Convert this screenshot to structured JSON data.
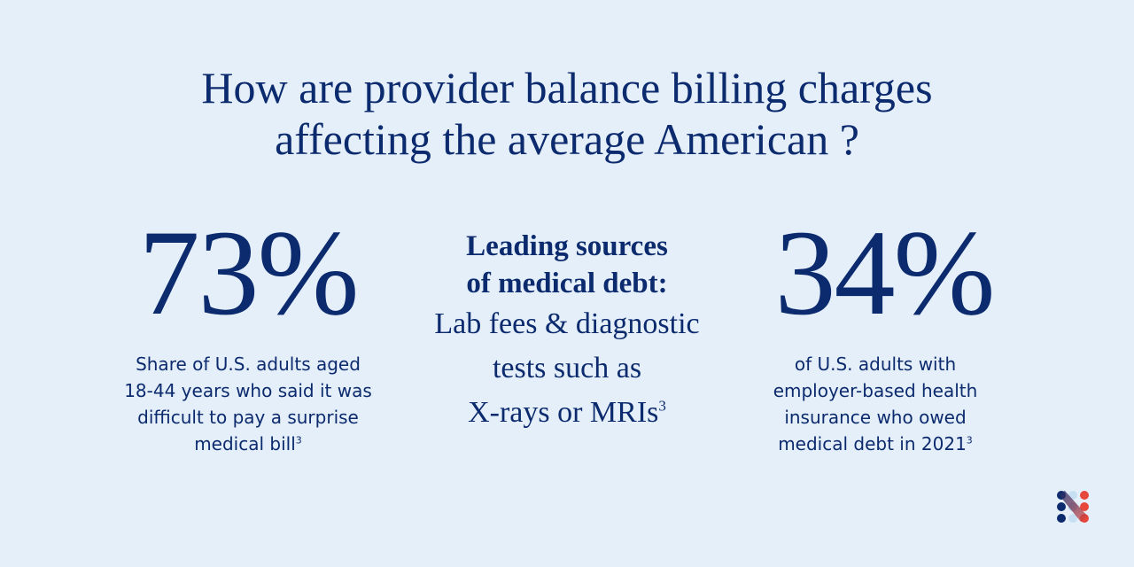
{
  "title": {
    "line1": "How are provider balance billing charges",
    "line2": "affecting the average American ?"
  },
  "left_stat": {
    "value": "73%",
    "caption": [
      "Share of U.S. adults aged",
      "18-44 years who said it was",
      "difficult to pay a surprise",
      "medical bill"
    ],
    "footnote": "3"
  },
  "middle": {
    "heading": [
      "Leading sources",
      "of medical debt:"
    ],
    "body": [
      "Lab fees & diagnostic",
      "tests such as",
      "X-rays or MRIs"
    ],
    "footnote": "3"
  },
  "right_stat": {
    "value": "34%",
    "caption": [
      "of U.S. adults with",
      "employer-based health",
      "insurance who owed",
      "medical debt in 2021"
    ],
    "footnote": "3"
  },
  "colors": {
    "background": "#e4eff9",
    "text": "#0c2a6e",
    "logo_left": "#0c2a6e",
    "logo_mid": "#a9cdec",
    "logo_right": "#e8473b"
  },
  "logo": {
    "icon": "n-dots-logo"
  }
}
